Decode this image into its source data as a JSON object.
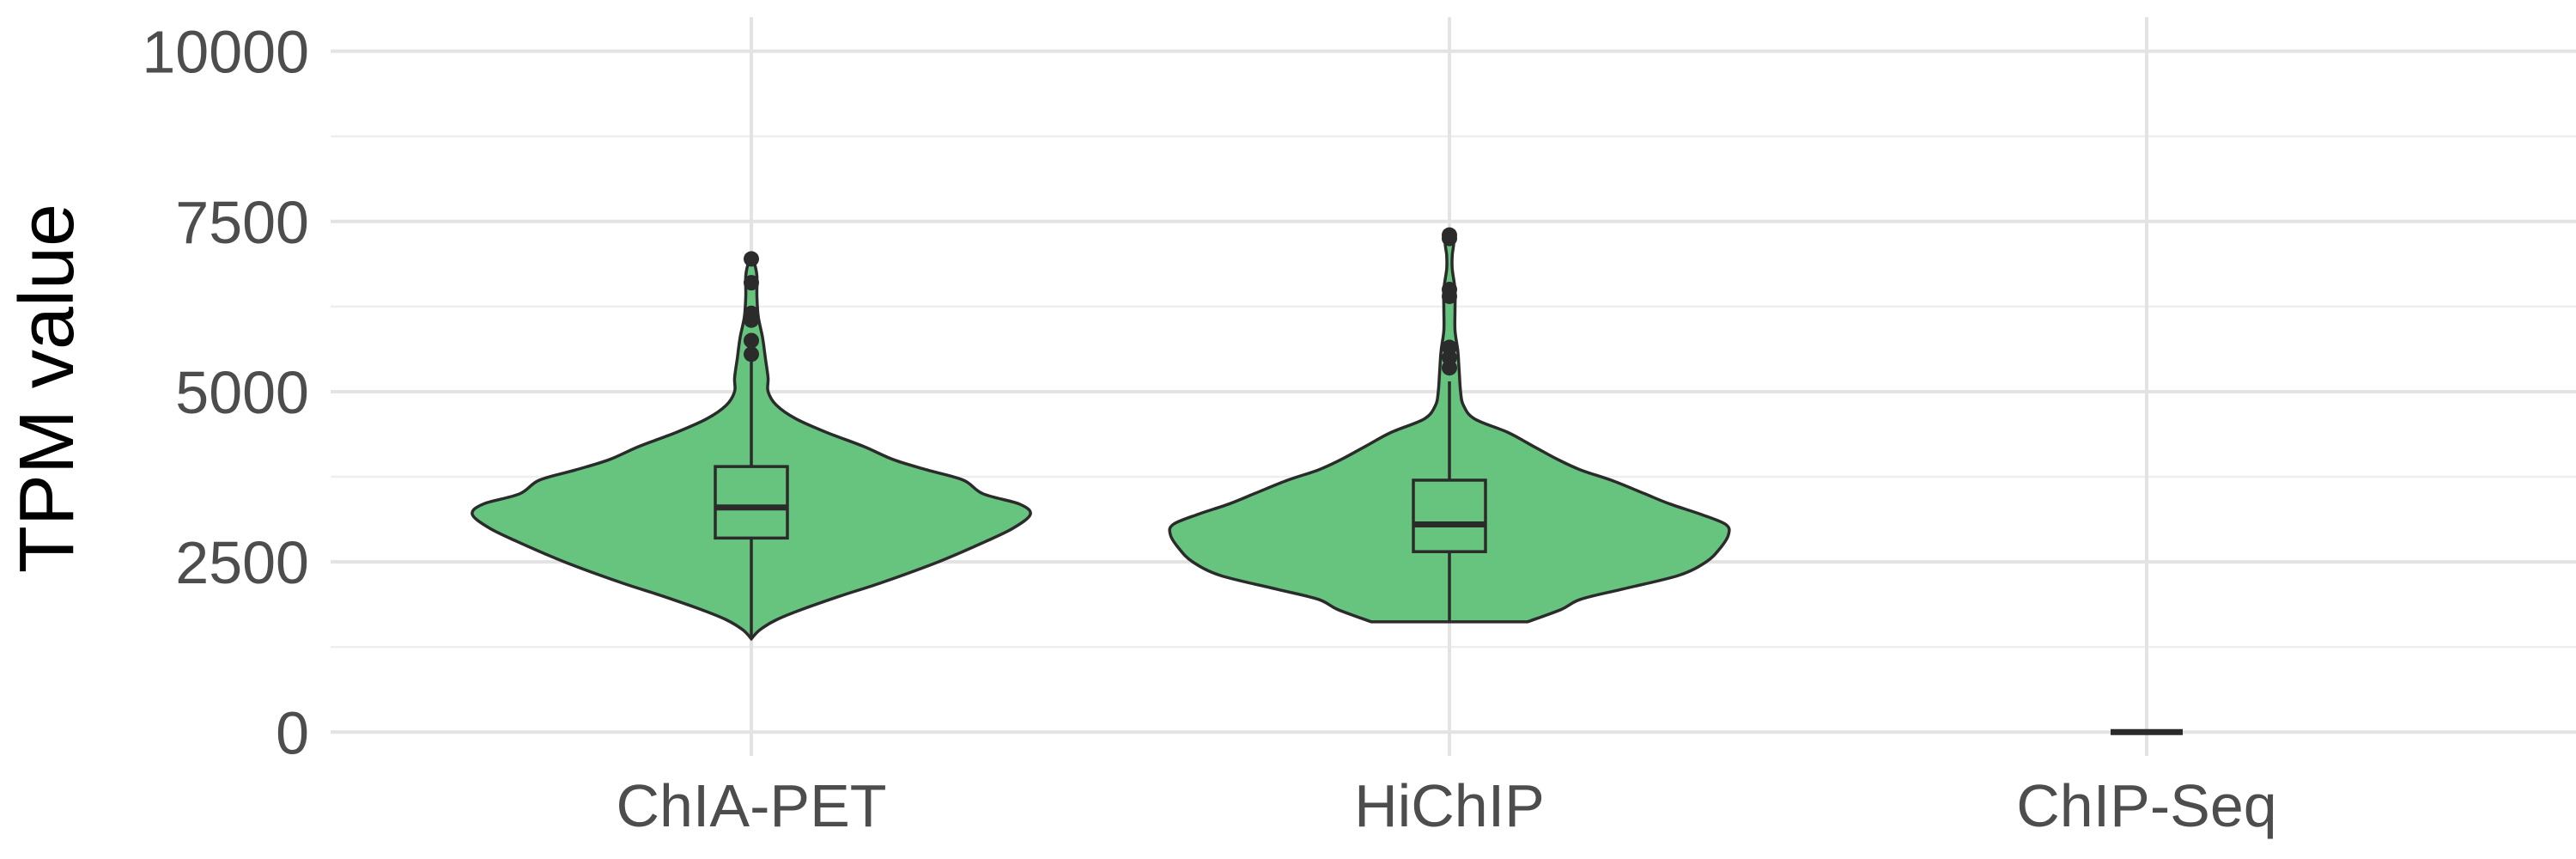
{
  "chart_data": {
    "type": "violin",
    "ylabel": "TPM value",
    "xlabel": "",
    "ylim": [
      -350,
      10500
    ],
    "y_ticks": [
      0,
      2500,
      5000,
      7500,
      10000
    ],
    "y_tick_labels": [
      "0",
      "2500",
      "5000",
      "7500",
      "10000"
    ],
    "grid": true,
    "legend": "none",
    "fill_color": "#66c47f",
    "outline_color": "#2b2b2b",
    "categories": [
      "ChIA-PET",
      "HiChIP",
      "ChIP-Seq"
    ],
    "groups": [
      {
        "name": "ChIA-PET",
        "violin": [
          {
            "y": 1370,
            "w": 0.0
          },
          {
            "y": 1500,
            "w": 0.03
          },
          {
            "y": 1650,
            "w": 0.09
          },
          {
            "y": 1800,
            "w": 0.18
          },
          {
            "y": 2000,
            "w": 0.32
          },
          {
            "y": 2200,
            "w": 0.47
          },
          {
            "y": 2500,
            "w": 0.67
          },
          {
            "y": 2800,
            "w": 0.84
          },
          {
            "y": 3000,
            "w": 0.94
          },
          {
            "y": 3200,
            "w": 1.0
          },
          {
            "y": 3350,
            "w": 0.96
          },
          {
            "y": 3500,
            "w": 0.83
          },
          {
            "y": 3700,
            "w": 0.76
          },
          {
            "y": 3850,
            "w": 0.63
          },
          {
            "y": 4000,
            "w": 0.51
          },
          {
            "y": 4200,
            "w": 0.4
          },
          {
            "y": 4400,
            "w": 0.27
          },
          {
            "y": 4600,
            "w": 0.16
          },
          {
            "y": 4800,
            "w": 0.09
          },
          {
            "y": 5000,
            "w": 0.06
          },
          {
            "y": 5200,
            "w": 0.06
          },
          {
            "y": 5500,
            "w": 0.05
          },
          {
            "y": 5800,
            "w": 0.04
          },
          {
            "y": 6100,
            "w": 0.025
          },
          {
            "y": 6400,
            "w": 0.02
          },
          {
            "y": 6700,
            "w": 0.02
          },
          {
            "y": 6900,
            "w": 0.01
          },
          {
            "y": 6960,
            "w": 0.0
          }
        ],
        "box": {
          "lower_whisker": 1370,
          "q1": 2850,
          "median": 3300,
          "q3": 3900,
          "upper_whisker": 5500
        },
        "outliers": [
          5550,
          5750,
          6050,
          6150,
          6600,
          6950
        ]
      },
      {
        "name": "HiChIP",
        "violin": [
          {
            "y": 1620,
            "w": 0.28
          },
          {
            "y": 1800,
            "w": 0.4
          },
          {
            "y": 1950,
            "w": 0.47
          },
          {
            "y": 2100,
            "w": 0.62
          },
          {
            "y": 2300,
            "w": 0.82
          },
          {
            "y": 2500,
            "w": 0.92
          },
          {
            "y": 2700,
            "w": 0.97
          },
          {
            "y": 2900,
            "w": 1.0
          },
          {
            "y": 3050,
            "w": 0.99
          },
          {
            "y": 3200,
            "w": 0.9
          },
          {
            "y": 3350,
            "w": 0.79
          },
          {
            "y": 3500,
            "w": 0.7
          },
          {
            "y": 3700,
            "w": 0.58
          },
          {
            "y": 3850,
            "w": 0.47
          },
          {
            "y": 4000,
            "w": 0.39
          },
          {
            "y": 4200,
            "w": 0.3
          },
          {
            "y": 4400,
            "w": 0.21
          },
          {
            "y": 4600,
            "w": 0.09
          },
          {
            "y": 4800,
            "w": 0.05
          },
          {
            "y": 5000,
            "w": 0.04
          },
          {
            "y": 5300,
            "w": 0.035
          },
          {
            "y": 5600,
            "w": 0.03
          },
          {
            "y": 5900,
            "w": 0.02
          },
          {
            "y": 6200,
            "w": 0.02
          },
          {
            "y": 6500,
            "w": 0.02
          },
          {
            "y": 6800,
            "w": 0.01
          },
          {
            "y": 7000,
            "w": 0.01
          },
          {
            "y": 7200,
            "w": 0.015
          },
          {
            "y": 7340,
            "w": 0.0
          }
        ],
        "box": {
          "lower_whisker": 1620,
          "q1": 2650,
          "median": 3050,
          "q3": 3700,
          "upper_whisker": 5150
        },
        "outliers": [
          5350,
          5500,
          5650,
          6400,
          6500,
          7250,
          7300
        ]
      },
      {
        "name": "ChIP-Seq",
        "violin": [],
        "box": {
          "lower_whisker": 0,
          "q1": 0,
          "median": 0,
          "q3": 0,
          "upper_whisker": 0
        },
        "outliers": []
      }
    ]
  }
}
